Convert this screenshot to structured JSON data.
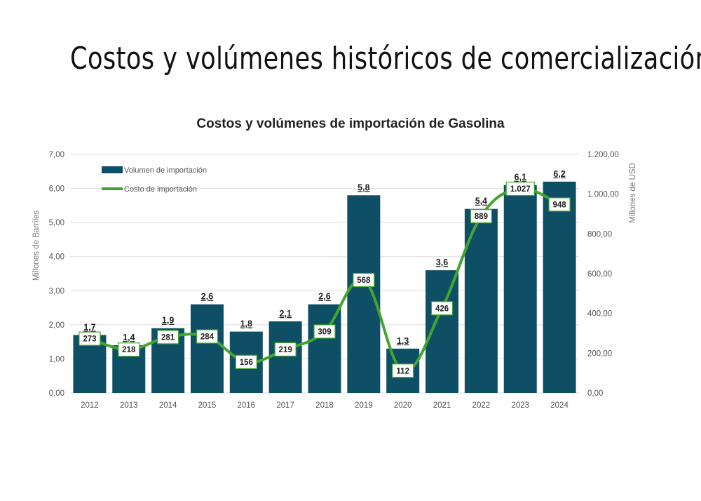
{
  "page": {
    "title": "Costos y volúmenes históricos de comercialización"
  },
  "chart_data": {
    "type": "bar",
    "title": "Costos y volúmenes de importación de Gasolina",
    "categories": [
      "2012",
      "2013",
      "2014",
      "2015",
      "2016",
      "2017",
      "2018",
      "2019",
      "2020",
      "2021",
      "2022",
      "2023",
      "2024"
    ],
    "series": [
      {
        "name": "Volumen de importación",
        "type": "bar",
        "axis": "left",
        "color": "#0e4f65",
        "values": [
          1.7,
          1.4,
          1.9,
          2.6,
          1.8,
          2.1,
          2.6,
          5.8,
          1.3,
          3.6,
          5.4,
          6.1,
          6.2
        ],
        "labels": [
          "1,7",
          "1,4",
          "1,9",
          "2,6",
          "1,8",
          "2,1",
          "2,6",
          "5,8",
          "1,3",
          "3,6",
          "5,4",
          "6,1",
          "6,2"
        ]
      },
      {
        "name": "Costo de importación",
        "type": "line",
        "axis": "right",
        "color": "#43a52f",
        "values": [
          273,
          218,
          281,
          284,
          156,
          219,
          309,
          568,
          112,
          426,
          889,
          1027,
          948
        ],
        "labels": [
          "273",
          "218",
          "281",
          "284",
          "156",
          "219",
          "309",
          "568",
          "112",
          "426",
          "889",
          "1.027",
          "948"
        ]
      }
    ],
    "ylabel": "Millones de Barriles",
    "ylim": [
      0,
      7
    ],
    "yticks": [
      "0,00",
      "1,00",
      "2,00",
      "3,00",
      "4,00",
      "5,00",
      "6,00",
      "7,00"
    ],
    "y2label": "Millones de USD",
    "y2lim": [
      0,
      1200
    ],
    "y2ticks": [
      "0,00",
      "200,00",
      "400,00",
      "600,00",
      "800,00",
      "1.000,00",
      "1.200,00"
    ],
    "grid": true,
    "legend": "top-left"
  }
}
